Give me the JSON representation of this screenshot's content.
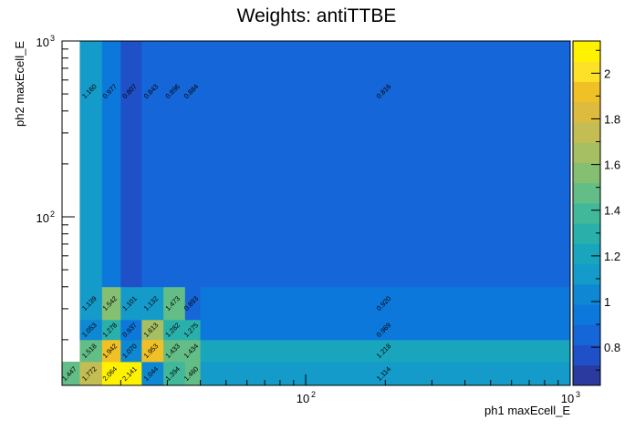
{
  "chart_data": {
    "type": "heatmap",
    "title": "Weights: antiTTBE",
    "xlabel": "ph1 maxEcell_E",
    "ylabel": "ph2 maxEcell_E",
    "x_scale": "log",
    "y_scale": "log",
    "x_edges": [
      12,
      14,
      17,
      20,
      24,
      29,
      35,
      40,
      1000
    ],
    "y_edges": [
      11,
      15,
      20,
      26,
      40,
      1000
    ],
    "xlim": [
      12,
      1000
    ],
    "ylim": [
      11,
      1000
    ],
    "x_ticks": [
      {
        "value": 100,
        "base": "10",
        "exp": "2"
      },
      {
        "value": 1000,
        "base": "10",
        "exp": "3"
      }
    ],
    "y_ticks": [
      {
        "value": 100,
        "base": "10",
        "exp": "2"
      },
      {
        "value": 1000,
        "base": "10",
        "exp": "3"
      }
    ],
    "cells": [
      [
        "1.447",
        "1.772",
        "2.064",
        "2.141",
        "1.044",
        "1.394",
        "1.460",
        "1.114"
      ],
      [
        "1.518",
        "1.942",
        "1.070",
        "1.953",
        "1.433",
        "1.434",
        "1.218",
        "1.462",
        "0.920"
      ],
      [
        "1.053",
        "1.278",
        "0.937",
        "1.613",
        "1.282",
        "1.275",
        "0.969",
        "1.138",
        "0.815"
      ],
      [
        "1.139",
        "1.542",
        "1.101",
        "1.132",
        "1.473",
        "0.893",
        "0.920",
        "1.320",
        "0.862"
      ],
      [
        "1.160",
        "0.977",
        "0.807",
        "0.843",
        "0.896",
        "0.884",
        "0.816",
        "0.760",
        "0.633"
      ]
    ],
    "colorbar": {
      "min": 0.633,
      "max": 2.141,
      "ticks": [
        "0.8",
        "1",
        "1.2",
        "1.4",
        "1.6",
        "1.8",
        "2"
      ],
      "tick_values": [
        0.8,
        1.0,
        1.2,
        1.4,
        1.6,
        1.8,
        2.0
      ]
    },
    "palette": [
      "#2a3a9e",
      "#1f50c8",
      "#1566d8",
      "#0d78db",
      "#0e88d2",
      "#149bc9",
      "#19a6bc",
      "#2ab0ab",
      "#41b89a",
      "#63bd86",
      "#85bf72",
      "#a6bf62",
      "#c4bd53",
      "#dcbb3f",
      "#f0c027",
      "#fde028",
      "#fff200"
    ]
  }
}
